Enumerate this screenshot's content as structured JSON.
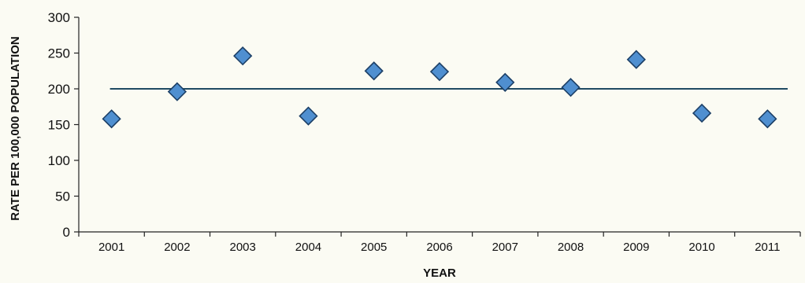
{
  "chart_data": {
    "type": "scatter",
    "title": "",
    "xlabel": "YEAR",
    "ylabel": "RATE PER 100,000 POPULATION",
    "categories": [
      "2001",
      "2002",
      "2003",
      "2004",
      "2005",
      "2006",
      "2007",
      "2008",
      "2009",
      "2010",
      "2011"
    ],
    "series": [
      {
        "values": [
          158,
          196,
          246,
          162,
          225,
          224,
          209,
          202,
          241,
          166,
          158
        ]
      }
    ],
    "reference_line": {
      "value": 200
    },
    "ylim": [
      0,
      300
    ],
    "yticks": [
      0,
      50,
      100,
      150,
      200,
      250,
      300
    ],
    "grid": false,
    "legend": "none",
    "colors": {
      "marker_fill": "#4f8fd0",
      "marker_stroke": "#1c3f66",
      "line": "#1f4a63",
      "axis": "#222222",
      "background": "#fbfbf3"
    }
  }
}
